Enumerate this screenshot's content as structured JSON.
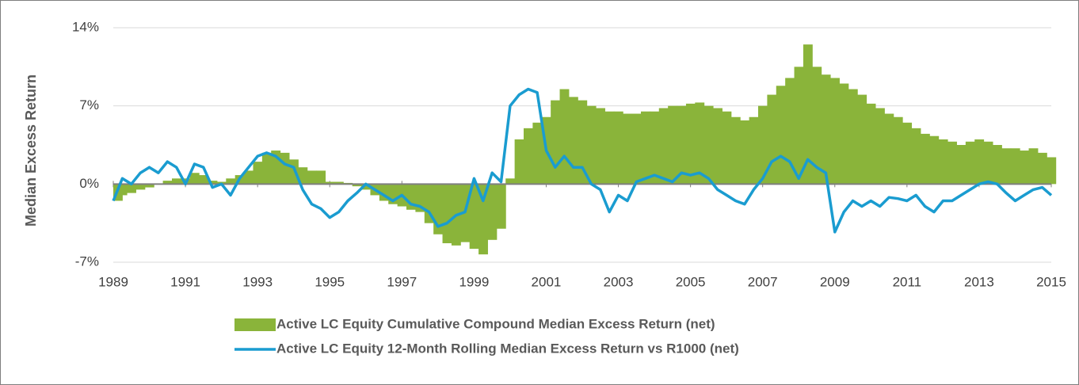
{
  "chart_data": {
    "type": "bar_line",
    "ylabel": "Median Excess Return",
    "xlim": [
      1989,
      2015
    ],
    "xticks": [
      1989,
      1991,
      1993,
      1995,
      1997,
      1999,
      2001,
      2003,
      2005,
      2007,
      2009,
      2011,
      2013,
      2015
    ],
    "ylim": [
      -7,
      14
    ],
    "yticks": [
      {
        "value": -7,
        "label": "-7%"
      },
      {
        "value": 0,
        "label": "0%"
      },
      {
        "value": 7,
        "label": "7%"
      },
      {
        "value": 14,
        "label": "14%"
      }
    ],
    "grid": true,
    "x": [
      1989,
      1989.25,
      1989.5,
      1989.75,
      1990,
      1990.25,
      1990.5,
      1990.75,
      1991,
      1991.25,
      1991.5,
      1991.75,
      1992,
      1992.25,
      1992.5,
      1992.75,
      1993,
      1993.25,
      1993.5,
      1993.75,
      1994,
      1994.25,
      1994.5,
      1994.75,
      1995,
      1995.25,
      1995.5,
      1995.75,
      1996,
      1996.25,
      1996.5,
      1996.75,
      1997,
      1997.25,
      1997.5,
      1997.75,
      1998,
      1998.25,
      1998.5,
      1998.75,
      1999,
      1999.25,
      1999.5,
      1999.75,
      2000,
      2000.25,
      2000.5,
      2000.75,
      2001,
      2001.25,
      2001.5,
      2001.75,
      2002,
      2002.25,
      2002.5,
      2002.75,
      2003,
      2003.25,
      2003.5,
      2003.75,
      2004,
      2004.25,
      2004.5,
      2004.75,
      2005,
      2005.25,
      2005.5,
      2005.75,
      2006,
      2006.25,
      2006.5,
      2006.75,
      2007,
      2007.25,
      2007.5,
      2007.75,
      2008,
      2008.25,
      2008.5,
      2008.75,
      2009,
      2009.25,
      2009.5,
      2009.75,
      2010,
      2010.25,
      2010.5,
      2010.75,
      2011,
      2011.25,
      2011.5,
      2011.75,
      2012,
      2012.25,
      2012.5,
      2012.75,
      2013,
      2013.25,
      2013.5,
      2013.75,
      2014,
      2014.25,
      2014.5,
      2014.75,
      2015
    ],
    "series": [
      {
        "name": "Active LC Equity Cumulative Compound Median Excess Return (net)",
        "color": "#8ab43a",
        "kind": "bar",
        "values": [
          -1.5,
          -1,
          -0.8,
          -0.5,
          -0.3,
          0,
          0.3,
          0.5,
          0.5,
          1,
          0.8,
          0.3,
          0.2,
          0.5,
          0.8,
          1.2,
          2,
          2.8,
          3,
          2.8,
          2.2,
          1.5,
          1.2,
          1.2,
          0.2,
          0.2,
          0.1,
          -0.2,
          -0.5,
          -1,
          -1.5,
          -1.8,
          -2,
          -2.3,
          -2.5,
          -3.5,
          -4.5,
          -5.3,
          -5.5,
          -5.2,
          -5.8,
          -6.3,
          -5,
          -4,
          0.5,
          4,
          5,
          5.5,
          6,
          7.5,
          8.5,
          7.8,
          7.5,
          7,
          6.8,
          6.5,
          6.5,
          6.3,
          6.3,
          6.5,
          6.5,
          6.8,
          7,
          7,
          7.2,
          7.3,
          7,
          6.8,
          6.5,
          6,
          5.7,
          6,
          7,
          8,
          8.8,
          9.5,
          10.5,
          12.5,
          10.5,
          9.8,
          9.5,
          9,
          8.5,
          8,
          7.2,
          6.8,
          6.3,
          6,
          5.5,
          5,
          4.5,
          4.3,
          4,
          3.8,
          3.5,
          3.8,
          4,
          3.8,
          3.5,
          3.2,
          3.2,
          3,
          3.2,
          2.8,
          2.4
        ]
      },
      {
        "name": "Active LC Equity 12-Month Rolling Median Excess Return vs R1000 (net)",
        "color": "#1a9cd0",
        "kind": "line",
        "values": [
          -1.5,
          0.5,
          0,
          1,
          1.5,
          1,
          2,
          1.5,
          0,
          1.8,
          1.5,
          -0.3,
          0,
          -1,
          0.5,
          1.5,
          2.5,
          2.8,
          2.5,
          1.8,
          1.5,
          -0.5,
          -1.8,
          -2.2,
          -3,
          -2.5,
          -1.5,
          -0.8,
          0,
          -0.5,
          -1,
          -1.5,
          -1,
          -1.8,
          -2,
          -2.5,
          -3.8,
          -3.5,
          -2.8,
          -2.5,
          0.5,
          -1.5,
          1,
          0.2,
          7,
          8,
          8.5,
          8.2,
          3,
          1.5,
          2.5,
          1.5,
          1.5,
          0,
          -0.5,
          -2.5,
          -1,
          -1.5,
          0.2,
          0.5,
          0.8,
          0.5,
          0.2,
          1,
          0.8,
          1,
          0.5,
          -0.5,
          -1,
          -1.5,
          -1.8,
          -0.5,
          0.5,
          2,
          2.5,
          2,
          0.5,
          2.2,
          1.5,
          1,
          -4.3,
          -2.5,
          -1.5,
          -2,
          -1.5,
          -2,
          -1.2,
          -1.3,
          -1.5,
          -1,
          -2,
          -2.5,
          -1.5,
          -1.5,
          -1,
          -0.5,
          0,
          0.2,
          0,
          -0.8,
          -1.5,
          -1,
          -0.5,
          -0.3,
          -1
        ]
      }
    ]
  }
}
